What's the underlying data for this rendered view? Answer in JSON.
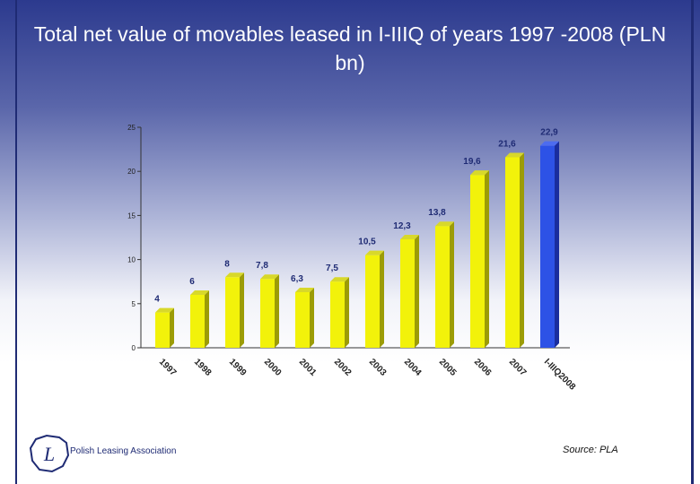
{
  "header": {
    "title": "Total net value of movables leased in I-IIIQ of years 1997 -2008 (PLN bn)"
  },
  "footer": {
    "source": "Source: PLA",
    "logo_text": "Polish Leasing Association",
    "logo_mark": "L"
  },
  "colors": {
    "bar": "#f2f20a",
    "bar_side": "#9c9c06",
    "bar_top": "#d8d82a",
    "highlight": "#2d52e6",
    "highlight_side": "#1a2d9e",
    "highlight_top": "#4d6cf0"
  },
  "chart_data": {
    "type": "bar",
    "title": "Total net value of movables leased in I-IIIQ of years 1997 -2008 (PLN bn)",
    "categories": [
      "1997",
      "1998",
      "1999",
      "2000",
      "2001",
      "2002",
      "2003",
      "2004",
      "2005",
      "2006",
      "2007",
      "I-IIIQ2008"
    ],
    "values": [
      4,
      6,
      8,
      7.8,
      6.3,
      7.5,
      10.5,
      12.3,
      13.8,
      19.6,
      21.6,
      22.9
    ],
    "value_labels": [
      "4",
      "6",
      "8",
      "7,8",
      "6,3",
      "7,5",
      "10,5",
      "12,3",
      "13,8",
      "19,6",
      "21,6",
      "22,9"
    ],
    "yticks": [
      "0",
      "5",
      "10",
      "15",
      "20",
      "25"
    ],
    "ylim": [
      0,
      25
    ],
    "grid": false,
    "legend": "none",
    "xlabel": "",
    "ylabel": "",
    "highlight_index": 11
  }
}
